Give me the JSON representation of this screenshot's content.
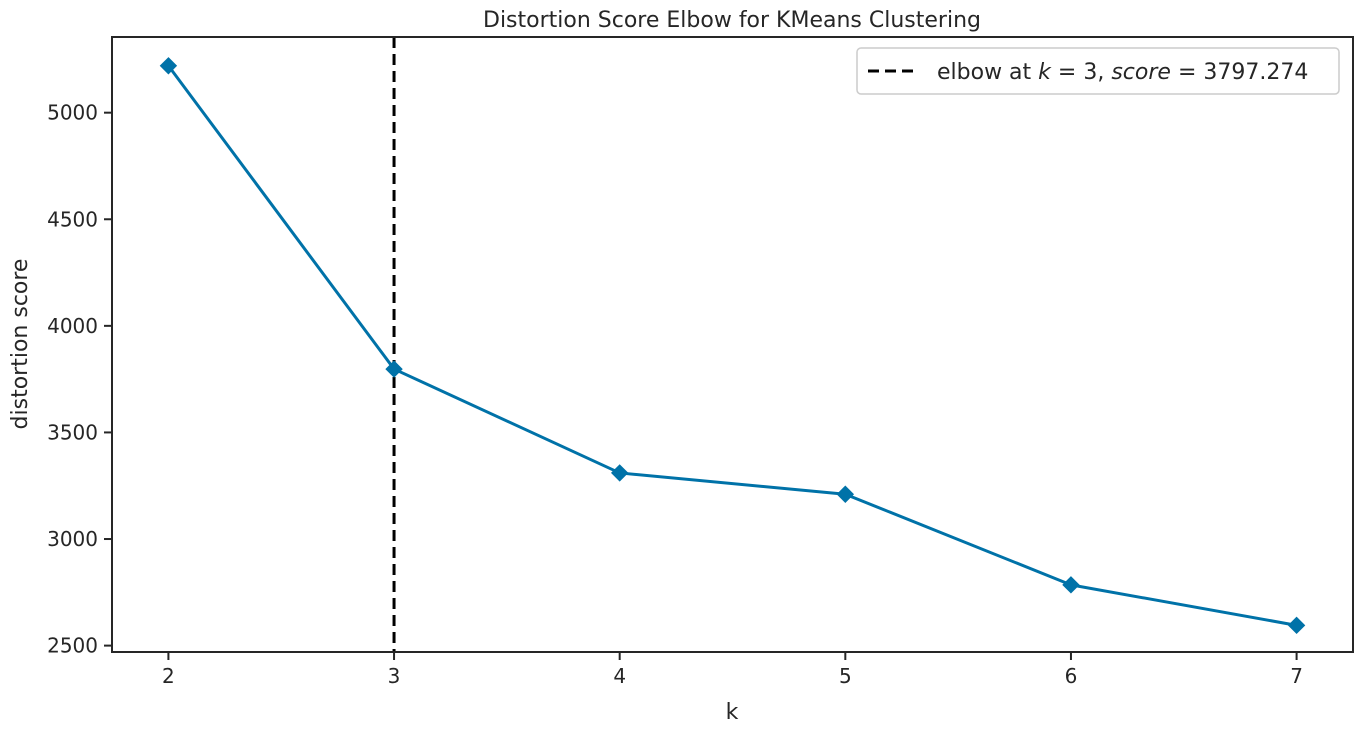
{
  "chart_data": {
    "type": "line",
    "title": "Distortion Score Elbow for KMeans Clustering",
    "xlabel": "k",
    "ylabel": "distortion score",
    "x": [
      2,
      3,
      4,
      5,
      6,
      7
    ],
    "series": [
      {
        "values": [
          5220,
          3797.274,
          3310,
          3210,
          2785,
          2595
        ],
        "color": "#0072a8",
        "marker": "diamond"
      }
    ],
    "xlim": [
      1.75,
      7.25
    ],
    "ylim": [
      2470,
      5355
    ],
    "x_ticks": [
      2,
      3,
      4,
      5,
      6,
      7
    ],
    "y_ticks": [
      2500,
      3000,
      3500,
      4000,
      4500,
      5000
    ],
    "elbow": {
      "k": 3,
      "score": "3797.274",
      "line_color": "#000000",
      "line_style": "dashed"
    },
    "legend": {
      "placement": "top-right",
      "prefix": "elbow at ",
      "k_symbol": "k",
      "equals": " = ",
      "k_value": "3",
      "separator": ", ",
      "score_symbol": "score",
      "score_value": "3797.274"
    },
    "grid": false,
    "colors": {
      "series": "#0072a8",
      "axes": "#262626",
      "elbow": "#000000"
    }
  }
}
